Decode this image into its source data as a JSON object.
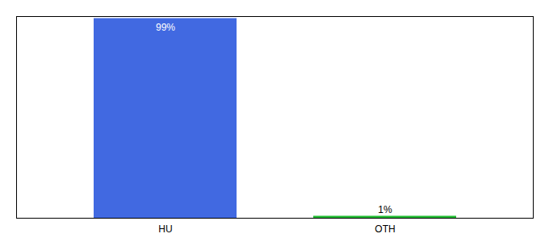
{
  "chart_data": {
    "type": "bar",
    "categories": [
      "HU",
      "OTH"
    ],
    "values": [
      99,
      1
    ],
    "value_labels": [
      "99%",
      "1%"
    ],
    "colors": [
      "#4169e1",
      "#22bb33"
    ],
    "ylim": [
      0,
      100
    ],
    "data_labels": true,
    "tick_labels": "x",
    "grid": false
  }
}
